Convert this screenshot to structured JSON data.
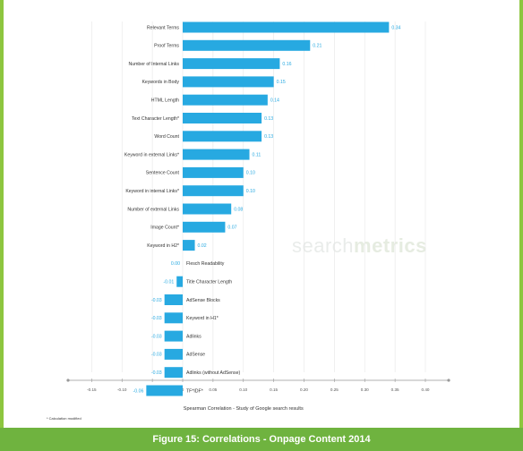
{
  "chart_data": {
    "type": "bar",
    "orientation": "horizontal",
    "categories": [
      "Relevant Terms",
      "Proof Terms",
      "Number of Internal Links",
      "Keywords in Body",
      "HTML Length",
      "Text Character Length*",
      "Word Count",
      "Keyword in external Links*",
      "Sentence Count",
      "Keyword in internal Links*",
      "Number of external Links",
      "Image Count*",
      "Keyword in H2*",
      "Flesch Readability",
      "Title Character Length",
      "AdSense Blocks",
      "Keyword in H1*",
      "Adlinks",
      "AdSense",
      "Adlinks (without AdSense)",
      "TF*IDF*"
    ],
    "values": [
      0.34,
      0.21,
      0.16,
      0.15,
      0.14,
      0.13,
      0.13,
      0.11,
      0.1,
      0.1,
      0.08,
      0.07,
      0.02,
      0.0,
      -0.01,
      -0.03,
      -0.03,
      -0.03,
      -0.03,
      -0.03,
      -0.06
    ],
    "value_labels": [
      "0.34",
      "0.21",
      "0.16",
      "0.15",
      "0.14",
      "0.13",
      "0.13",
      "0.11",
      "0.10",
      "0.10",
      "0.08",
      "0.07",
      "0.02",
      "0.00",
      "-0.01",
      "-0.03",
      "-0.03",
      "-0.03",
      "-0.03",
      "-0.03",
      "-0.06"
    ],
    "xlim": [
      -0.15,
      0.4
    ],
    "x_ticks": [
      -0.15,
      -0.1,
      -0.05,
      0,
      0.05,
      0.1,
      0.15,
      0.2,
      0.25,
      0.3,
      0.35,
      0.4
    ],
    "x_tick_labels": [
      "-0.15",
      "-0.10",
      "-0.05",
      "0",
      "0.05",
      "0.10",
      "0.15",
      "0.20",
      "0.25",
      "0.30",
      "0.35",
      "0.40"
    ],
    "xlabel": "Spearman Correlation - Study of Google search results",
    "grid": "vertical",
    "bar_color": "#27a9e1",
    "label_color": "#27a9e1"
  },
  "footnote": "* Calculation modified",
  "watermark": "searchmetrics",
  "caption": "Figure 15: Correlations - Onpage Content 2014",
  "colors": {
    "border": "#8dc63f",
    "caption_bg": "#6fb33f",
    "grid": "#e6e6e6",
    "axis": "#999999"
  }
}
